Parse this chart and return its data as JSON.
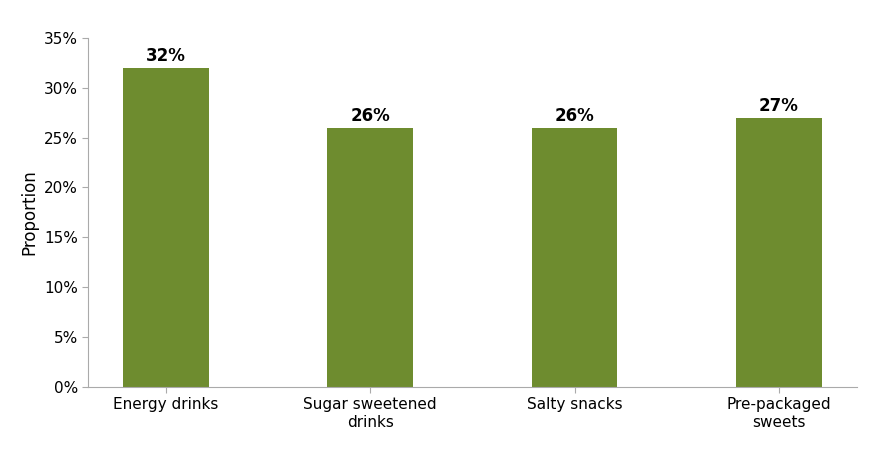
{
  "categories": [
    "Energy drinks",
    "Sugar sweetened\ndrinks",
    "Salty snacks",
    "Pre-packaged\nsweets"
  ],
  "values": [
    0.32,
    0.26,
    0.26,
    0.27
  ],
  "labels": [
    "32%",
    "26%",
    "26%",
    "27%"
  ],
  "bar_color": "#6e8c2f",
  "ylabel": "Proportion",
  "ylim": [
    0,
    0.35
  ],
  "yticks": [
    0,
    0.05,
    0.1,
    0.15,
    0.2,
    0.25,
    0.3,
    0.35
  ],
  "ytick_labels": [
    "0%",
    "5%",
    "10%",
    "15%",
    "20%",
    "25%",
    "30%",
    "35%"
  ],
  "label_fontsize": 12,
  "ylabel_fontsize": 12,
  "xtick_fontsize": 11,
  "ytick_fontsize": 11,
  "bar_width": 0.42,
  "background_color": "#ffffff",
  "spine_color": "#aaaaaa",
  "tick_color": "#aaaaaa"
}
